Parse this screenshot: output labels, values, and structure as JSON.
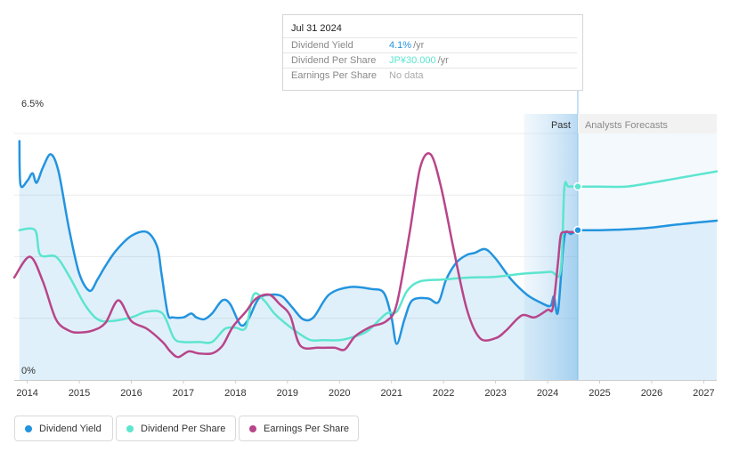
{
  "chart_data": {
    "type": "line",
    "ylim": [
      0,
      6.5
    ],
    "y_tick_labels": [
      "6.5%",
      "0%"
    ],
    "xlim": [
      2013.75,
      2027.25
    ],
    "x_tick_labels": [
      "2014",
      "2015",
      "2016",
      "2017",
      "2018",
      "2019",
      "2020",
      "2021",
      "2022",
      "2023",
      "2024",
      "2025",
      "2026",
      "2027"
    ],
    "regions": {
      "past_label": "Past",
      "forecast_label": "Analysts Forecasts",
      "past_start": 2023.55,
      "divider": 2024.58
    },
    "grid": true,
    "legend_placement": "bottom-left",
    "series": [
      {
        "name": "Dividend Yield",
        "color": "#2394df",
        "filled": true,
        "x": [
          2013.85,
          2013.87,
          2014.0,
          2014.1,
          2014.18,
          2014.3,
          2014.45,
          2014.6,
          2014.8,
          2015.0,
          2015.2,
          2015.35,
          2015.5,
          2015.7,
          2016.0,
          2016.3,
          2016.5,
          2016.58,
          2016.7,
          2016.8,
          2017.0,
          2017.15,
          2017.25,
          2017.4,
          2017.55,
          2017.75,
          2017.9,
          2018.1,
          2018.25,
          2018.45,
          2018.7,
          2018.9,
          2019.1,
          2019.3,
          2019.5,
          2019.8,
          2020.2,
          2020.6,
          2020.85,
          2021.0,
          2021.1,
          2021.25,
          2021.4,
          2021.7,
          2021.9,
          2022.05,
          2022.25,
          2022.45,
          2022.6,
          2022.8,
          2023.0,
          2023.3,
          2023.6,
          2023.85,
          2024.05,
          2024.12,
          2024.2,
          2024.32,
          2024.45,
          2024.58
        ],
        "y": [
          6.3,
          5.15,
          5.25,
          5.45,
          5.2,
          5.6,
          5.95,
          5.5,
          4.0,
          2.8,
          2.35,
          2.65,
          3.0,
          3.4,
          3.8,
          3.9,
          3.5,
          2.8,
          1.75,
          1.65,
          1.65,
          1.75,
          1.65,
          1.6,
          1.75,
          2.1,
          2.0,
          1.45,
          1.6,
          2.15,
          2.25,
          2.2,
          1.9,
          1.6,
          1.65,
          2.25,
          2.45,
          2.4,
          2.3,
          1.65,
          0.95,
          1.6,
          2.1,
          2.15,
          2.05,
          2.65,
          3.1,
          3.3,
          3.35,
          3.45,
          3.2,
          2.65,
          2.25,
          2.05,
          1.95,
          2.2,
          1.8,
          3.75,
          3.85,
          3.95
        ],
        "forecast_x": [
          2024.58,
          2025.0,
          2025.5,
          2026.0,
          2026.5,
          2027.25
        ],
        "forecast_y": [
          3.95,
          3.95,
          3.97,
          4.02,
          4.1,
          4.2
        ]
      },
      {
        "name": "Dividend Per Share",
        "color": "#5ce5cf",
        "filled": false,
        "x": [
          2013.85,
          2014.15,
          2014.25,
          2014.55,
          2014.8,
          2015.1,
          2015.35,
          2015.6,
          2016.0,
          2016.3,
          2016.6,
          2016.82,
          2017.0,
          2017.3,
          2017.55,
          2017.8,
          2018.0,
          2018.2,
          2018.35,
          2018.55,
          2018.75,
          2019.0,
          2019.25,
          2019.45,
          2019.7,
          2020.0,
          2020.3,
          2020.55,
          2020.9,
          2021.1,
          2021.3,
          2021.55,
          2022.0,
          2022.5,
          2023.0,
          2023.5,
          2024.05,
          2024.25,
          2024.32,
          2024.4,
          2024.58
        ],
        "y": [
          3.95,
          3.95,
          3.3,
          3.25,
          2.75,
          2.0,
          1.6,
          1.55,
          1.65,
          1.8,
          1.75,
          1.1,
          1.0,
          1.0,
          1.0,
          1.35,
          1.38,
          1.38,
          2.25,
          2.1,
          1.75,
          1.45,
          1.2,
          1.05,
          1.05,
          1.05,
          1.15,
          1.3,
          1.75,
          1.8,
          2.35,
          2.6,
          2.65,
          2.7,
          2.72,
          2.8,
          2.85,
          2.88,
          5.05,
          5.1,
          5.1
        ],
        "forecast_x": [
          2024.58,
          2025.0,
          2025.5,
          2026.0,
          2026.5,
          2027.25
        ],
        "forecast_y": [
          5.1,
          5.1,
          5.1,
          5.2,
          5.32,
          5.5
        ]
      },
      {
        "name": "Earnings Per Share",
        "color": "#b8458a",
        "filled": false,
        "x": [
          2013.75,
          2014.05,
          2014.3,
          2014.55,
          2014.8,
          2015.0,
          2015.25,
          2015.5,
          2015.75,
          2016.0,
          2016.3,
          2016.6,
          2016.75,
          2016.9,
          2017.1,
          2017.3,
          2017.55,
          2017.75,
          2017.95,
          2018.2,
          2018.4,
          2018.65,
          2018.85,
          2019.05,
          2019.25,
          2019.6,
          2019.9,
          2020.1,
          2020.3,
          2020.6,
          2020.9,
          2021.1,
          2021.35,
          2021.55,
          2021.75,
          2021.95,
          2022.2,
          2022.45,
          2022.7,
          2023.0,
          2023.2,
          2023.5,
          2023.75,
          2024.0,
          2024.1,
          2024.2,
          2024.25,
          2024.32,
          2024.4,
          2024.5
        ],
        "y": [
          2.7,
          3.25,
          2.6,
          1.6,
          1.3,
          1.25,
          1.3,
          1.5,
          2.1,
          1.55,
          1.35,
          1.0,
          0.75,
          0.6,
          0.75,
          0.7,
          0.7,
          0.9,
          1.4,
          1.8,
          2.15,
          2.25,
          2.0,
          1.7,
          0.9,
          0.85,
          0.85,
          0.8,
          1.15,
          1.4,
          1.55,
          2.0,
          3.9,
          5.6,
          5.95,
          5.1,
          3.4,
          1.85,
          1.1,
          1.1,
          1.3,
          1.7,
          1.65,
          1.85,
          1.9,
          3.1,
          3.8,
          3.9,
          3.9,
          3.9
        ]
      }
    ]
  },
  "tooltip": {
    "date": "Jul 31 2024",
    "rows": [
      {
        "name": "Dividend Yield",
        "value": "4.1%",
        "unit": "/yr",
        "color": "#2394df"
      },
      {
        "name": "Dividend Per Share",
        "value": "JP¥30.000",
        "unit": "/yr",
        "color": "#5ce5cf"
      },
      {
        "name": "Earnings Per Share",
        "value": "No data",
        "unit": "",
        "color": "#aaaaaa"
      }
    ]
  },
  "legend": {
    "items": [
      {
        "label": "Dividend Yield",
        "color": "#2394df"
      },
      {
        "label": "Dividend Per Share",
        "color": "#5ce5cf"
      },
      {
        "label": "Earnings Per Share",
        "color": "#b8458a"
      }
    ]
  }
}
